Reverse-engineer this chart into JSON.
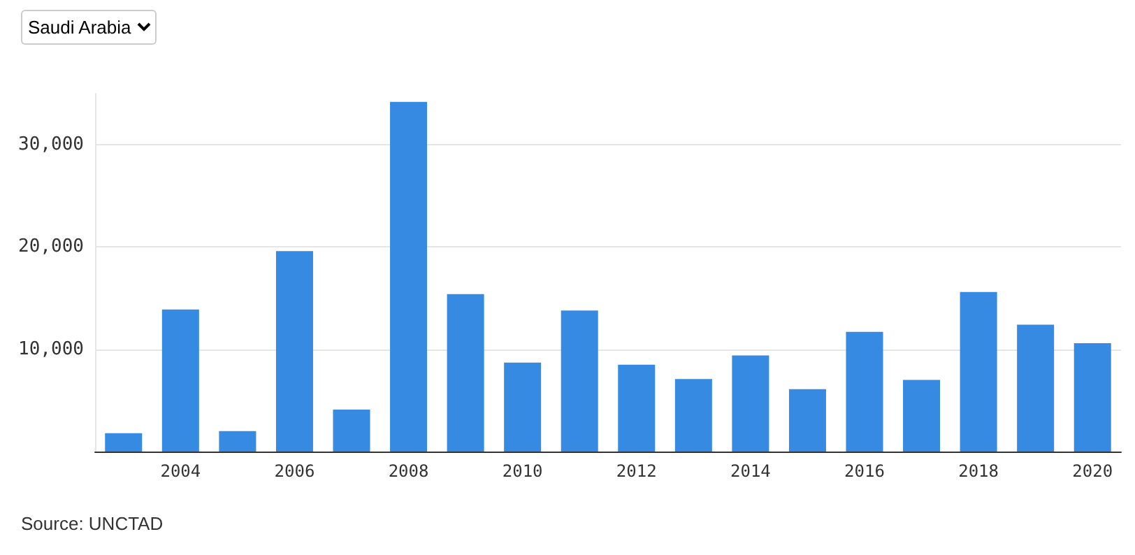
{
  "chart_data": {
    "type": "bar",
    "categories": [
      null,
      "2004",
      null,
      "2006",
      null,
      "2008",
      null,
      "2010",
      null,
      "2012",
      null,
      "2014",
      null,
      "2016",
      null,
      "2018",
      null,
      "2020"
    ],
    "values": [
      1800,
      13900,
      2000,
      19600,
      4100,
      34200,
      15400,
      8700,
      13800,
      8500,
      7100,
      9400,
      6100,
      11700,
      7000,
      15600,
      12400,
      10600
    ],
    "color": "#378ae2",
    "yticks": [
      {
        "value": 10000,
        "label": "10,000"
      },
      {
        "value": 20000,
        "label": "20,000"
      },
      {
        "value": 30000,
        "label": "30,000"
      }
    ],
    "ylim": [
      0,
      35000
    ],
    "grid": "y",
    "annotations": [
      "Saudi Arabia",
      "Source: UNCTAD"
    ]
  }
}
